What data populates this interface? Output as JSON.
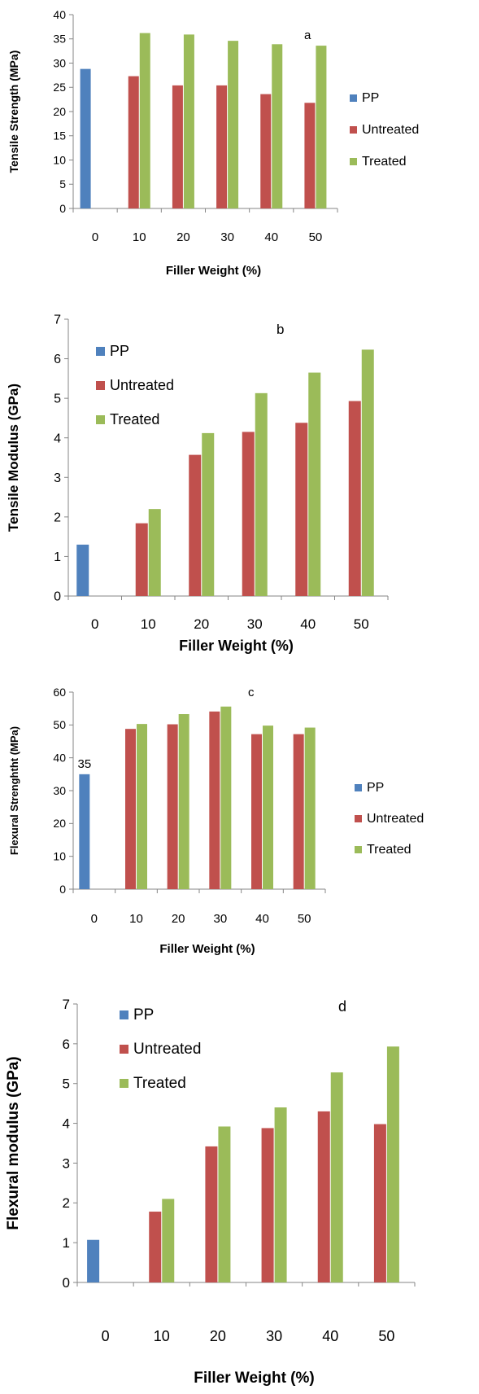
{
  "chart_data": [
    {
      "type": "bar",
      "categories": [
        "0",
        "10",
        "20",
        "30",
        "40",
        "50"
      ],
      "series": [
        {
          "name": "PP",
          "values": [
            28.8,
            null,
            null,
            null,
            null,
            null
          ]
        },
        {
          "name": "Untreated",
          "values": [
            null,
            27.3,
            25.4,
            25.4,
            23.6,
            21.8
          ]
        },
        {
          "name": "Treated",
          "values": [
            null,
            36.2,
            35.9,
            34.6,
            33.9,
            33.6
          ]
        }
      ],
      "title": "",
      "annotation": "a",
      "xlabel": "Filler Weight (%)",
      "ylabel": "Tensile Strength (MPa)",
      "ylim": [
        0,
        40
      ],
      "yticks": [
        0,
        5,
        10,
        15,
        20,
        25,
        30,
        35,
        40
      ],
      "grid": false,
      "legend_position": "right"
    },
    {
      "type": "bar",
      "categories": [
        "0",
        "10",
        "20",
        "30",
        "40",
        "50"
      ],
      "series": [
        {
          "name": "PP",
          "values": [
            1.3,
            null,
            null,
            null,
            null,
            null
          ]
        },
        {
          "name": "Untreated",
          "values": [
            null,
            1.84,
            3.57,
            4.15,
            4.38,
            4.93
          ]
        },
        {
          "name": "Treated",
          "values": [
            null,
            2.2,
            4.12,
            5.13,
            5.65,
            6.23
          ]
        }
      ],
      "title": "",
      "annotation": "b",
      "xlabel": "Filler Weight (%)",
      "ylabel": "Tensile Modulus (GPa)",
      "ylim": [
        0,
        7
      ],
      "yticks": [
        0,
        1,
        2,
        3,
        4,
        5,
        6,
        7
      ],
      "grid": false,
      "legend_position": "top-left"
    },
    {
      "type": "bar",
      "categories": [
        "0",
        "10",
        "20",
        "30",
        "40",
        "50"
      ],
      "series": [
        {
          "name": "PP",
          "values": [
            35,
            null,
            null,
            null,
            null,
            null
          ]
        },
        {
          "name": "Untreated",
          "values": [
            null,
            48.8,
            50.2,
            54.1,
            47.2,
            47.2
          ]
        },
        {
          "name": "Treated",
          "values": [
            null,
            50.3,
            53.3,
            55.6,
            49.8,
            49.2
          ]
        }
      ],
      "title": "",
      "annotation": "c",
      "data_labels": [
        "35"
      ],
      "xlabel": "Filler Weight (%)",
      "ylabel": "Flexural Strenghtht (MPa)",
      "ylim": [
        0,
        60
      ],
      "yticks": [
        0,
        10,
        20,
        30,
        40,
        50,
        60
      ],
      "grid": false,
      "legend_position": "right"
    },
    {
      "type": "bar",
      "categories": [
        "0",
        "10",
        "20",
        "30",
        "40",
        "50"
      ],
      "series": [
        {
          "name": "PP",
          "values": [
            1.07,
            null,
            null,
            null,
            null,
            null
          ]
        },
        {
          "name": "Untreated",
          "values": [
            null,
            1.78,
            3.42,
            3.88,
            4.3,
            3.98
          ]
        },
        {
          "name": "Treated",
          "values": [
            null,
            2.1,
            3.92,
            4.4,
            5.28,
            5.93
          ]
        }
      ],
      "title": "",
      "annotation": "d",
      "xlabel": "Filler Weight (%)",
      "ylabel": "Flexural modulus (GPa)",
      "ylim": [
        0,
        7
      ],
      "yticks": [
        0,
        1,
        2,
        3,
        4,
        5,
        6,
        7
      ],
      "grid": false,
      "legend_position": "top-left"
    }
  ],
  "colors": {
    "PP": "#4f81bd",
    "Untreated": "#c0504d",
    "Treated": "#9bbb59"
  }
}
